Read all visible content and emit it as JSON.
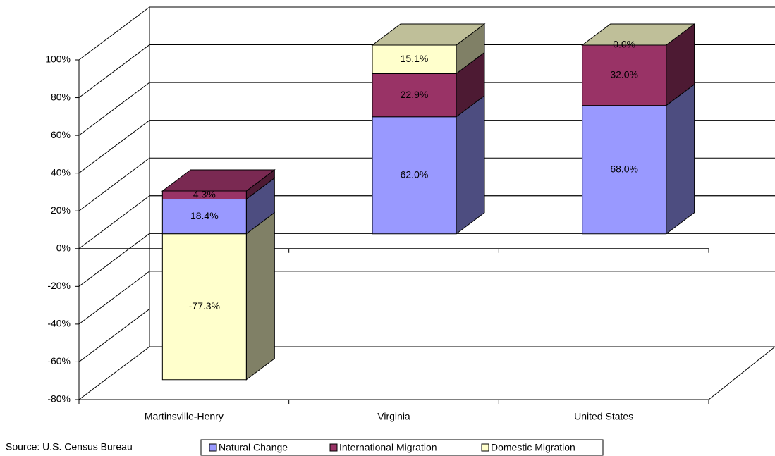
{
  "chart_data": {
    "type": "bar3d_stacked",
    "categories": [
      "Martinsville-Henry",
      "Virginia",
      "United States"
    ],
    "series": [
      {
        "name": "Natural Change",
        "color": "#9999ff",
        "values": [
          18.4,
          62.0,
          68.0
        ],
        "value_labels": [
          "18.4%",
          "62.0%",
          "68.0%"
        ]
      },
      {
        "name": "International Migration",
        "color": "#993366",
        "values": [
          4.3,
          22.9,
          32.0
        ],
        "value_labels": [
          "4.3%",
          "22.9%",
          "32.0%"
        ]
      },
      {
        "name": "Domestic Migration",
        "color": "#ffffcc",
        "values": [
          -77.3,
          15.1,
          0.0
        ],
        "value_labels": [
          "-77.3%",
          "15.1%",
          "0.0%"
        ]
      }
    ],
    "ylim": [
      -80,
      100
    ],
    "yticks": [
      {
        "value": -80,
        "label": "-80%"
      },
      {
        "value": -60,
        "label": "-60%"
      },
      {
        "value": -40,
        "label": "-40%"
      },
      {
        "value": -20,
        "label": "-20%"
      },
      {
        "value": 0,
        "label": "0%"
      },
      {
        "value": 20,
        "label": "20%"
      },
      {
        "value": 40,
        "label": "40%"
      },
      {
        "value": 60,
        "label": "60%"
      },
      {
        "value": 80,
        "label": "80%"
      },
      {
        "value": 100,
        "label": "100%"
      }
    ],
    "grid": true,
    "source": "Source: U.S. Census Bureau",
    "legend": "bottom"
  }
}
